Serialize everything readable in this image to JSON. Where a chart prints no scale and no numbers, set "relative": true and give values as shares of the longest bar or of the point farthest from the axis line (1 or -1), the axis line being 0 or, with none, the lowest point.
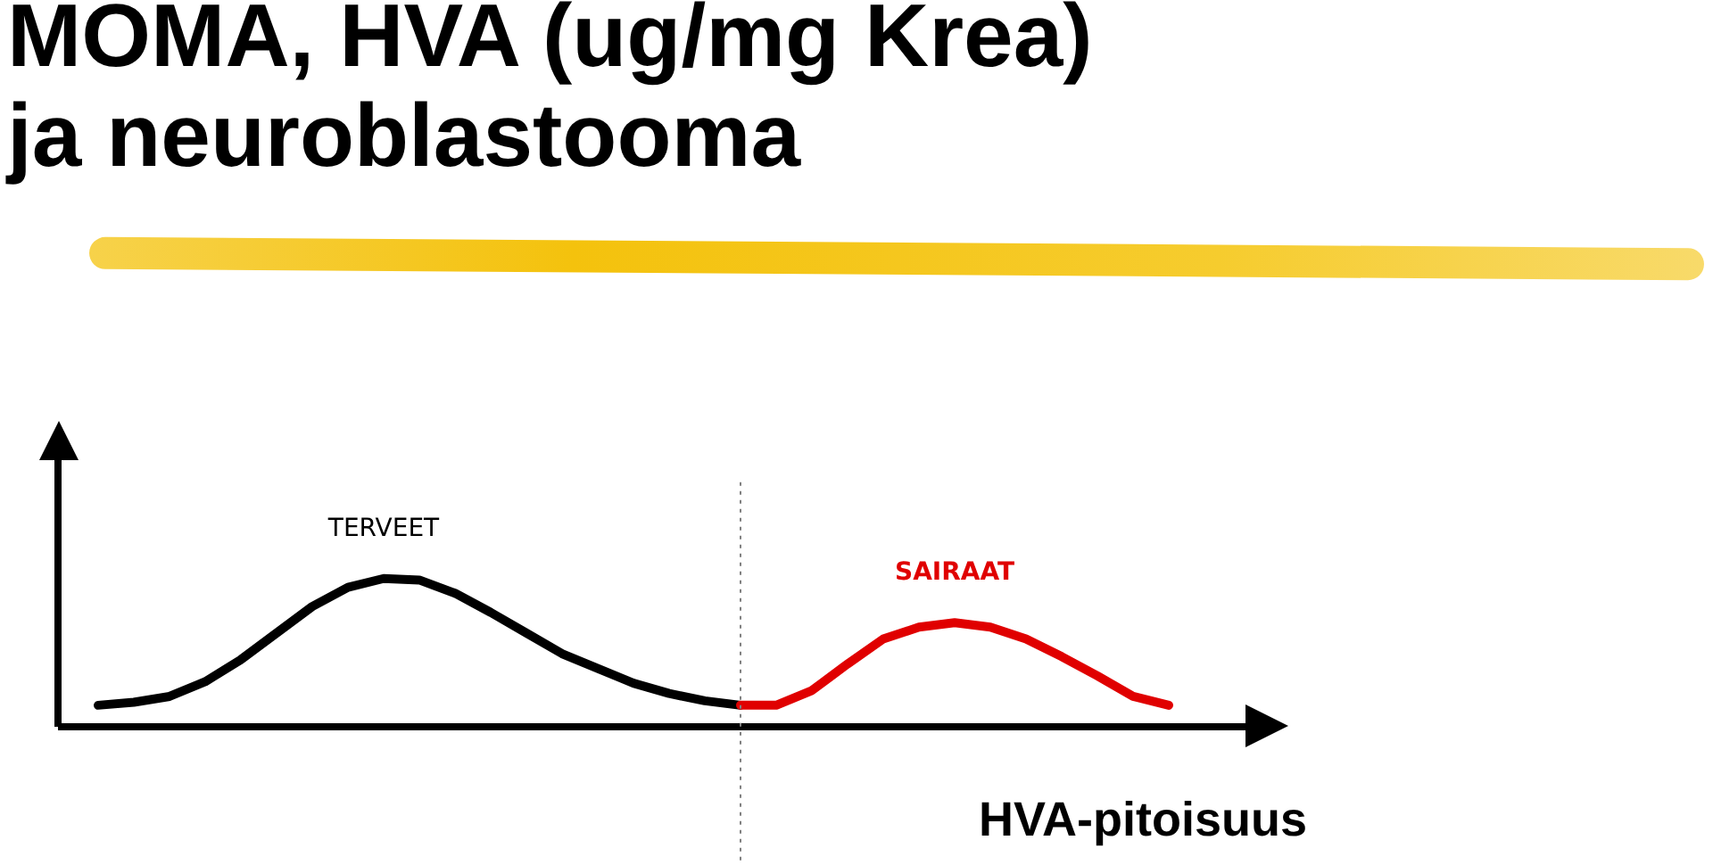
{
  "chart_data": {
    "type": "line",
    "title": "MOMA, HVA (ug/mg Krea)\nja neuroblastooma",
    "xlabel": "HVA-pitoisuus",
    "relative": true,
    "marker": "none",
    "line_style": "solid",
    "categories": [
      null,
      null,
      null,
      null,
      null,
      null,
      null,
      null,
      null,
      null,
      null,
      null,
      null,
      null,
      null,
      null,
      null,
      null,
      null,
      null,
      null,
      null,
      null,
      null,
      null,
      null,
      null,
      null,
      null,
      null,
      null
    ],
    "series": [
      {
        "name": "TERVEET",
        "color": "#000000",
        "values": [
          0.14,
          0.16,
          0.2,
          0.3,
          0.45,
          0.63,
          0.81,
          0.94,
          1.0,
          0.99,
          0.9,
          0.77,
          0.63,
          0.49,
          0.39,
          0.29,
          0.22,
          0.17,
          0.14,
          null,
          null,
          null,
          null,
          null,
          null,
          null,
          null,
          null,
          null,
          null,
          null
        ]
      },
      {
        "name": "SAIRAAT",
        "color": "#e00000",
        "values": [
          null,
          null,
          null,
          null,
          null,
          null,
          null,
          null,
          null,
          null,
          null,
          null,
          null,
          null,
          null,
          null,
          null,
          null,
          0.14,
          0.14,
          0.24,
          0.42,
          0.59,
          0.67,
          0.7,
          0.67,
          0.59,
          0.47,
          0.34,
          0.2,
          0.14
        ]
      }
    ]
  }
}
